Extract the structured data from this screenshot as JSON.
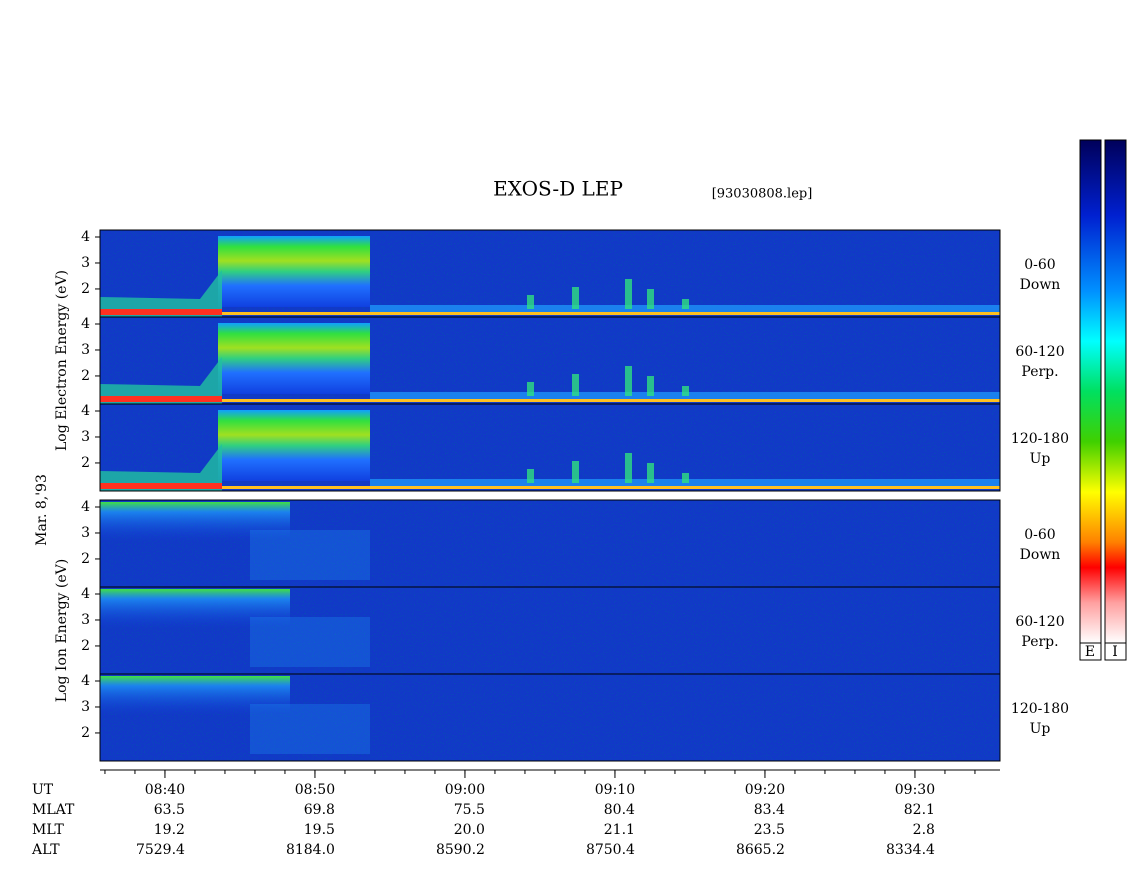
{
  "title": "EXOS-D LEP",
  "file": "[93030808.lep]",
  "date_label": "Mar. 8,'93",
  "groups": [
    {
      "label": "Log Electron Energy (eV)",
      "panels": [
        {
          "angle": "0-60",
          "direction": "Down"
        },
        {
          "angle": "60-120",
          "direction": "Perp."
        },
        {
          "angle": "120-180",
          "direction": "Up"
        }
      ]
    },
    {
      "label": "Log Ion Energy (eV)",
      "panels": [
        {
          "angle": "0-60",
          "direction": "Down"
        },
        {
          "angle": "60-120",
          "direction": "Perp."
        },
        {
          "angle": "120-180",
          "direction": "Up"
        }
      ]
    }
  ],
  "energy_axis": {
    "ylim": [
      0.92,
      4.27
    ],
    "yticks": [
      2,
      3,
      4
    ]
  },
  "time_axis": {
    "label": "UT",
    "xlim": [
      515.67,
      575.67
    ],
    "xticks": [
      {
        "value": 520,
        "label": "08:40"
      },
      {
        "value": 530,
        "label": "08:50"
      },
      {
        "value": 540,
        "label": "09:00"
      },
      {
        "value": 550,
        "label": "09:10"
      },
      {
        "value": 560,
        "label": "09:20"
      },
      {
        "value": 570,
        "label": "09:30"
      }
    ]
  },
  "ephemeris": [
    {
      "label": "MLAT",
      "values": [
        "63.5",
        "69.8",
        "75.5",
        "80.4",
        "83.4",
        "82.1"
      ]
    },
    {
      "label": "MLT",
      "values": [
        "19.2",
        "19.5",
        "20.0",
        "21.1",
        "23.5",
        "2.8"
      ]
    },
    {
      "label": "ALT",
      "values": [
        "7529.4",
        "8184.0",
        "8590.2",
        "8750.4",
        "8665.2",
        "8334.4"
      ]
    }
  ],
  "colorbar": {
    "labels": [
      "E",
      "I"
    ]
  }
}
